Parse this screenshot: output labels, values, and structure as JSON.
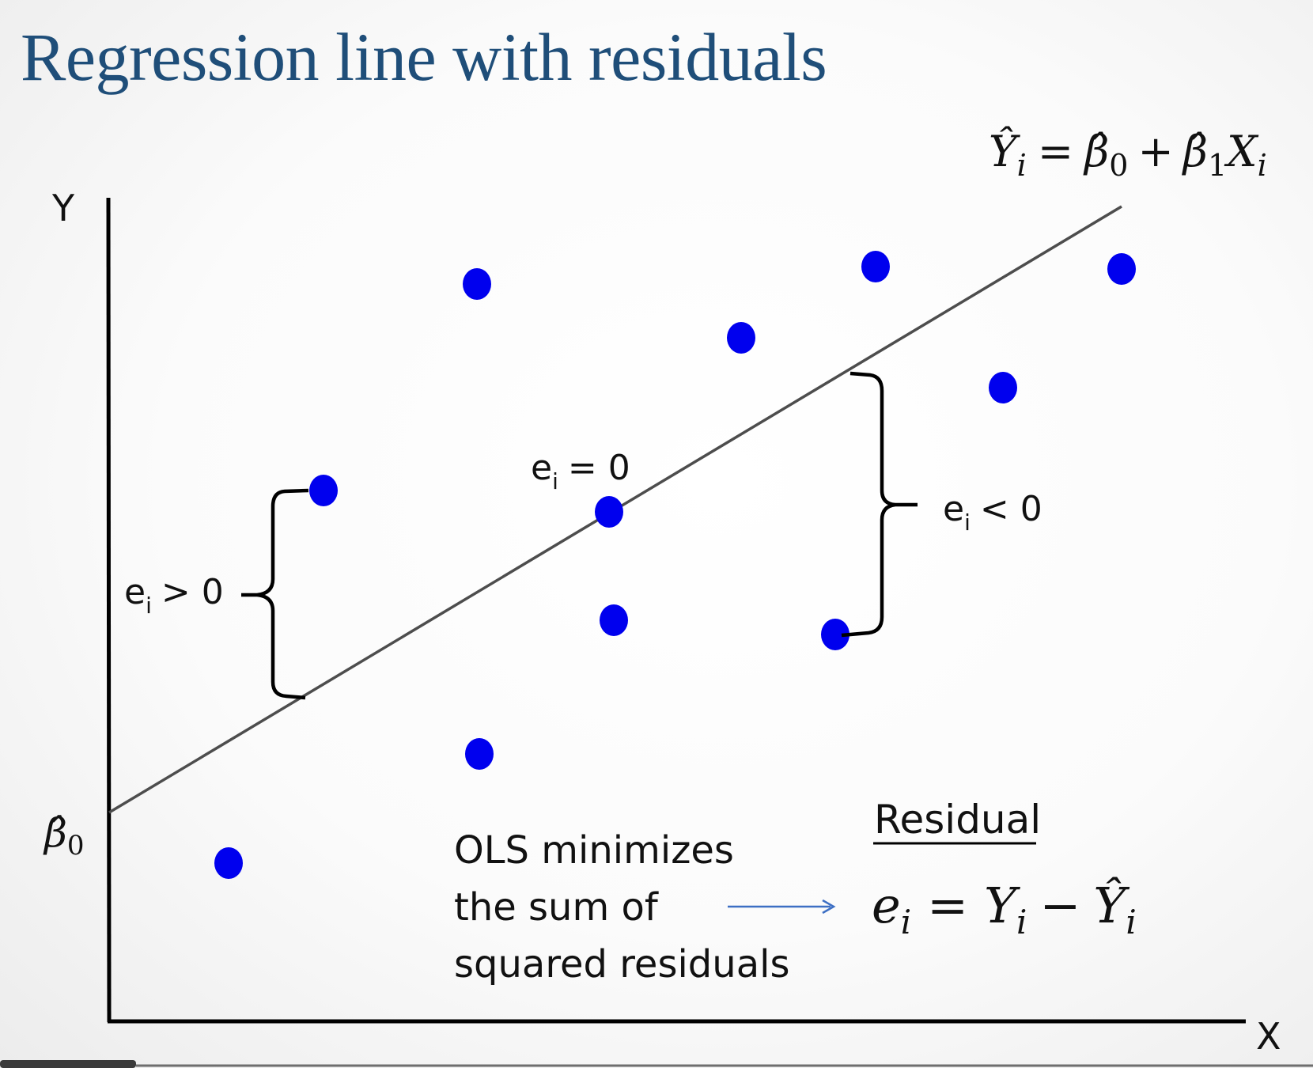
{
  "slide": {
    "title": "Regression line with residuals"
  },
  "axes": {
    "y_label": "Y",
    "x_label": "X",
    "intercept_label": "β̂",
    "intercept_subscript": "0"
  },
  "equation": {
    "yhat": "Ŷ",
    "i_sub": "i",
    "equals": "=",
    "beta": "β̂",
    "zero_sub": "0",
    "plus": "+",
    "one_sub": "1",
    "x": "X"
  },
  "annotations": {
    "positive": {
      "e": "e",
      "sub": "i",
      "rel": "> 0"
    },
    "zero": {
      "e": "e",
      "sub": "i",
      "rel": "= 0"
    },
    "negative": {
      "e": "e",
      "sub": "i",
      "rel": "< 0"
    }
  },
  "ols_note": {
    "line1": "OLS minimizes",
    "line2": "the  sum of",
    "line3": "squared residuals"
  },
  "residual_def": {
    "heading": "Residual",
    "e": "e",
    "sub": "i",
    "equals": "=",
    "y": "Y",
    "minus": "−",
    "yhat": "Ŷ"
  },
  "colors": {
    "title": "#1f4e79",
    "points": "#0000ee",
    "line": "#4d4d4d",
    "axes": "#000000",
    "arrow": "#3d6fc4"
  }
}
